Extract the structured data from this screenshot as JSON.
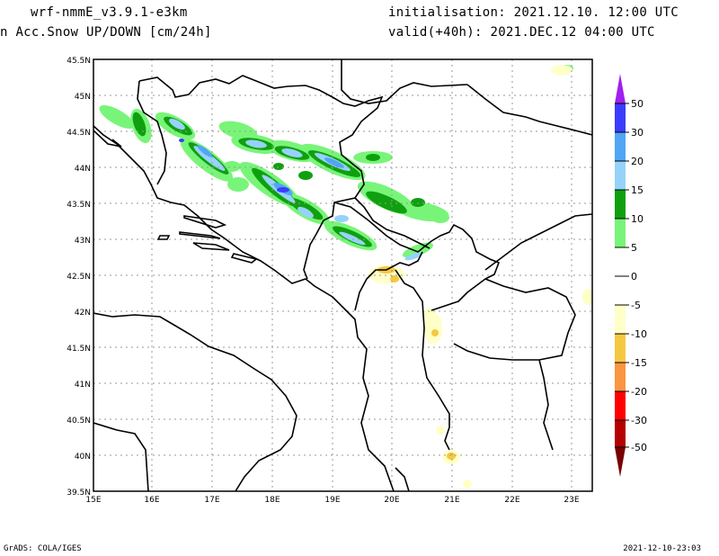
{
  "header": {
    "model": "wrf-nmmE_v3.9.1-e3km",
    "variable": "n Acc.Snow UP/DOWN [cm/24h]",
    "initialisation": "initialisation: 2021.12.10.  12:00 UTC",
    "valid": "valid(+40h): 2021.DEC.12 04:00 UTC"
  },
  "map": {
    "lon_labels": [
      "15E",
      "16E",
      "17E",
      "18E",
      "19E",
      "20E",
      "21E",
      "22E",
      "23E"
    ],
    "lat_labels": [
      "45.5N",
      "45N",
      "44.5N",
      "44N",
      "43.5N",
      "43N",
      "42.5N",
      "42N",
      "41.5N",
      "41N",
      "40.5N",
      "40N",
      "39.5N"
    ],
    "lon_range": [
      15,
      23.35
    ],
    "lat_range": [
      39.5,
      45.5
    ]
  },
  "colorbar": {
    "labels": [
      "50",
      "30",
      "20",
      "15",
      "10",
      "5",
      "0",
      "-5",
      "-10",
      "-15",
      "-20",
      "-30",
      "-50"
    ],
    "colors": {
      "above50": "#a020f0",
      "30-50": "#3c3cff",
      "20-30": "#50a5f5",
      "15-20": "#96d2fa",
      "10-15": "#0fa00f",
      "5-10": "#78f578",
      "-5-5": "#ffffff",
      "-10--5": "#ffffc8",
      "-15--10": "#f5c841",
      "-20--15": "#fa9641",
      "-30--20": "#ff0000",
      "-50--30": "#b40000",
      "below-50": "#780000"
    }
  },
  "footer": {
    "left": "GrADS: COLA/IGES",
    "right": "2021-12-10-23:03"
  }
}
